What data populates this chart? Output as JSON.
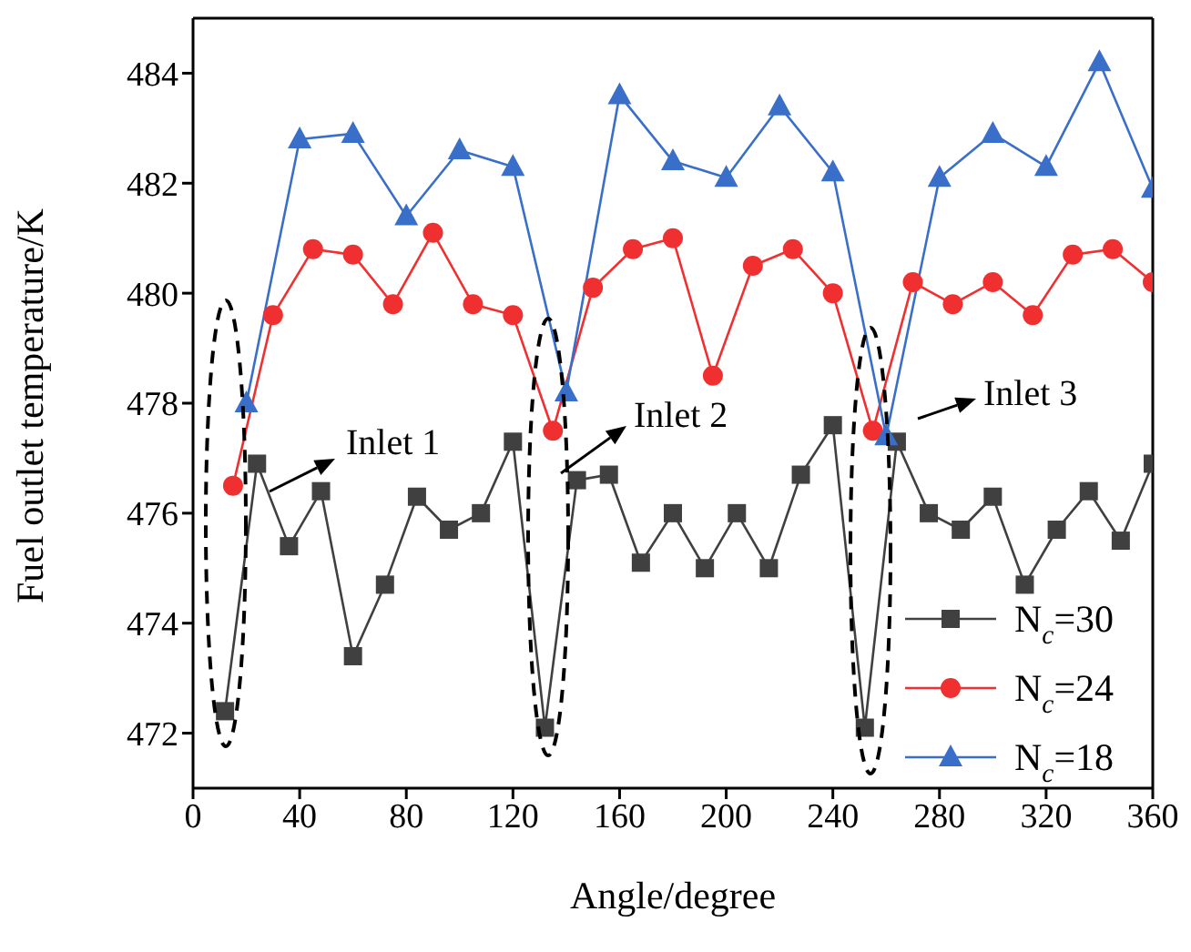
{
  "chart_data": {
    "type": "line",
    "xlabel": "Angle/degree",
    "ylabel": "Fuel outlet temperature/K",
    "xlim": [
      0,
      360
    ],
    "xticks": [
      0,
      40,
      80,
      120,
      160,
      200,
      240,
      280,
      320,
      360
    ],
    "ylim": [
      471,
      485
    ],
    "yticks": [
      472,
      474,
      476,
      478,
      480,
      482,
      484
    ],
    "grid": false,
    "legend": "bottom right",
    "line_style": "solid",
    "annotations": [
      "Inlet 1",
      "Inlet 2",
      "Inlet 3"
    ],
    "series": [
      {
        "name": "N$_{c}$=30",
        "color": "#404040",
        "marker": "square",
        "x": [
          12,
          24,
          36,
          48,
          60,
          72,
          84,
          96,
          108,
          120,
          132,
          144,
          156,
          168,
          180,
          192,
          204,
          216,
          228,
          240,
          252,
          264,
          276,
          288,
          300,
          312,
          324,
          336,
          348,
          360
        ],
        "values": [
          472.4,
          476.9,
          475.4,
          476.4,
          473.4,
          474.7,
          476.3,
          475.7,
          476.0,
          477.3,
          472.1,
          476.6,
          476.7,
          475.1,
          476.0,
          475.0,
          476.0,
          475.0,
          476.7,
          477.6,
          472.1,
          477.3,
          476.0,
          475.7,
          476.3,
          474.7,
          475.7,
          476.4,
          475.5,
          476.9
        ]
      },
      {
        "name": "N$_{c}$=24",
        "color": "#f03030",
        "marker": "circle",
        "x": [
          15,
          30,
          45,
          60,
          75,
          90,
          105,
          120,
          135,
          150,
          165,
          180,
          195,
          210,
          225,
          240,
          255,
          270,
          285,
          300,
          315,
          330,
          345,
          360
        ],
        "values": [
          476.5,
          479.6,
          480.8,
          480.7,
          479.8,
          481.1,
          479.8,
          479.6,
          477.5,
          480.1,
          480.8,
          481.0,
          478.5,
          480.5,
          480.8,
          480.0,
          477.5,
          480.2,
          479.8,
          480.2,
          479.6,
          480.7,
          480.8,
          480.2
        ]
      },
      {
        "name": "N$_{c}$=18",
        "color": "#3a6fc9",
        "marker": "triangle",
        "x": [
          20,
          40,
          60,
          80,
          100,
          120,
          140,
          160,
          180,
          200,
          220,
          240,
          260,
          280,
          300,
          320,
          340,
          360
        ],
        "values": [
          478.0,
          482.8,
          482.9,
          481.4,
          482.6,
          482.3,
          478.2,
          483.6,
          482.4,
          482.1,
          483.4,
          482.2,
          477.4,
          482.1,
          482.9,
          482.3,
          484.2,
          481.9
        ]
      }
    ]
  }
}
